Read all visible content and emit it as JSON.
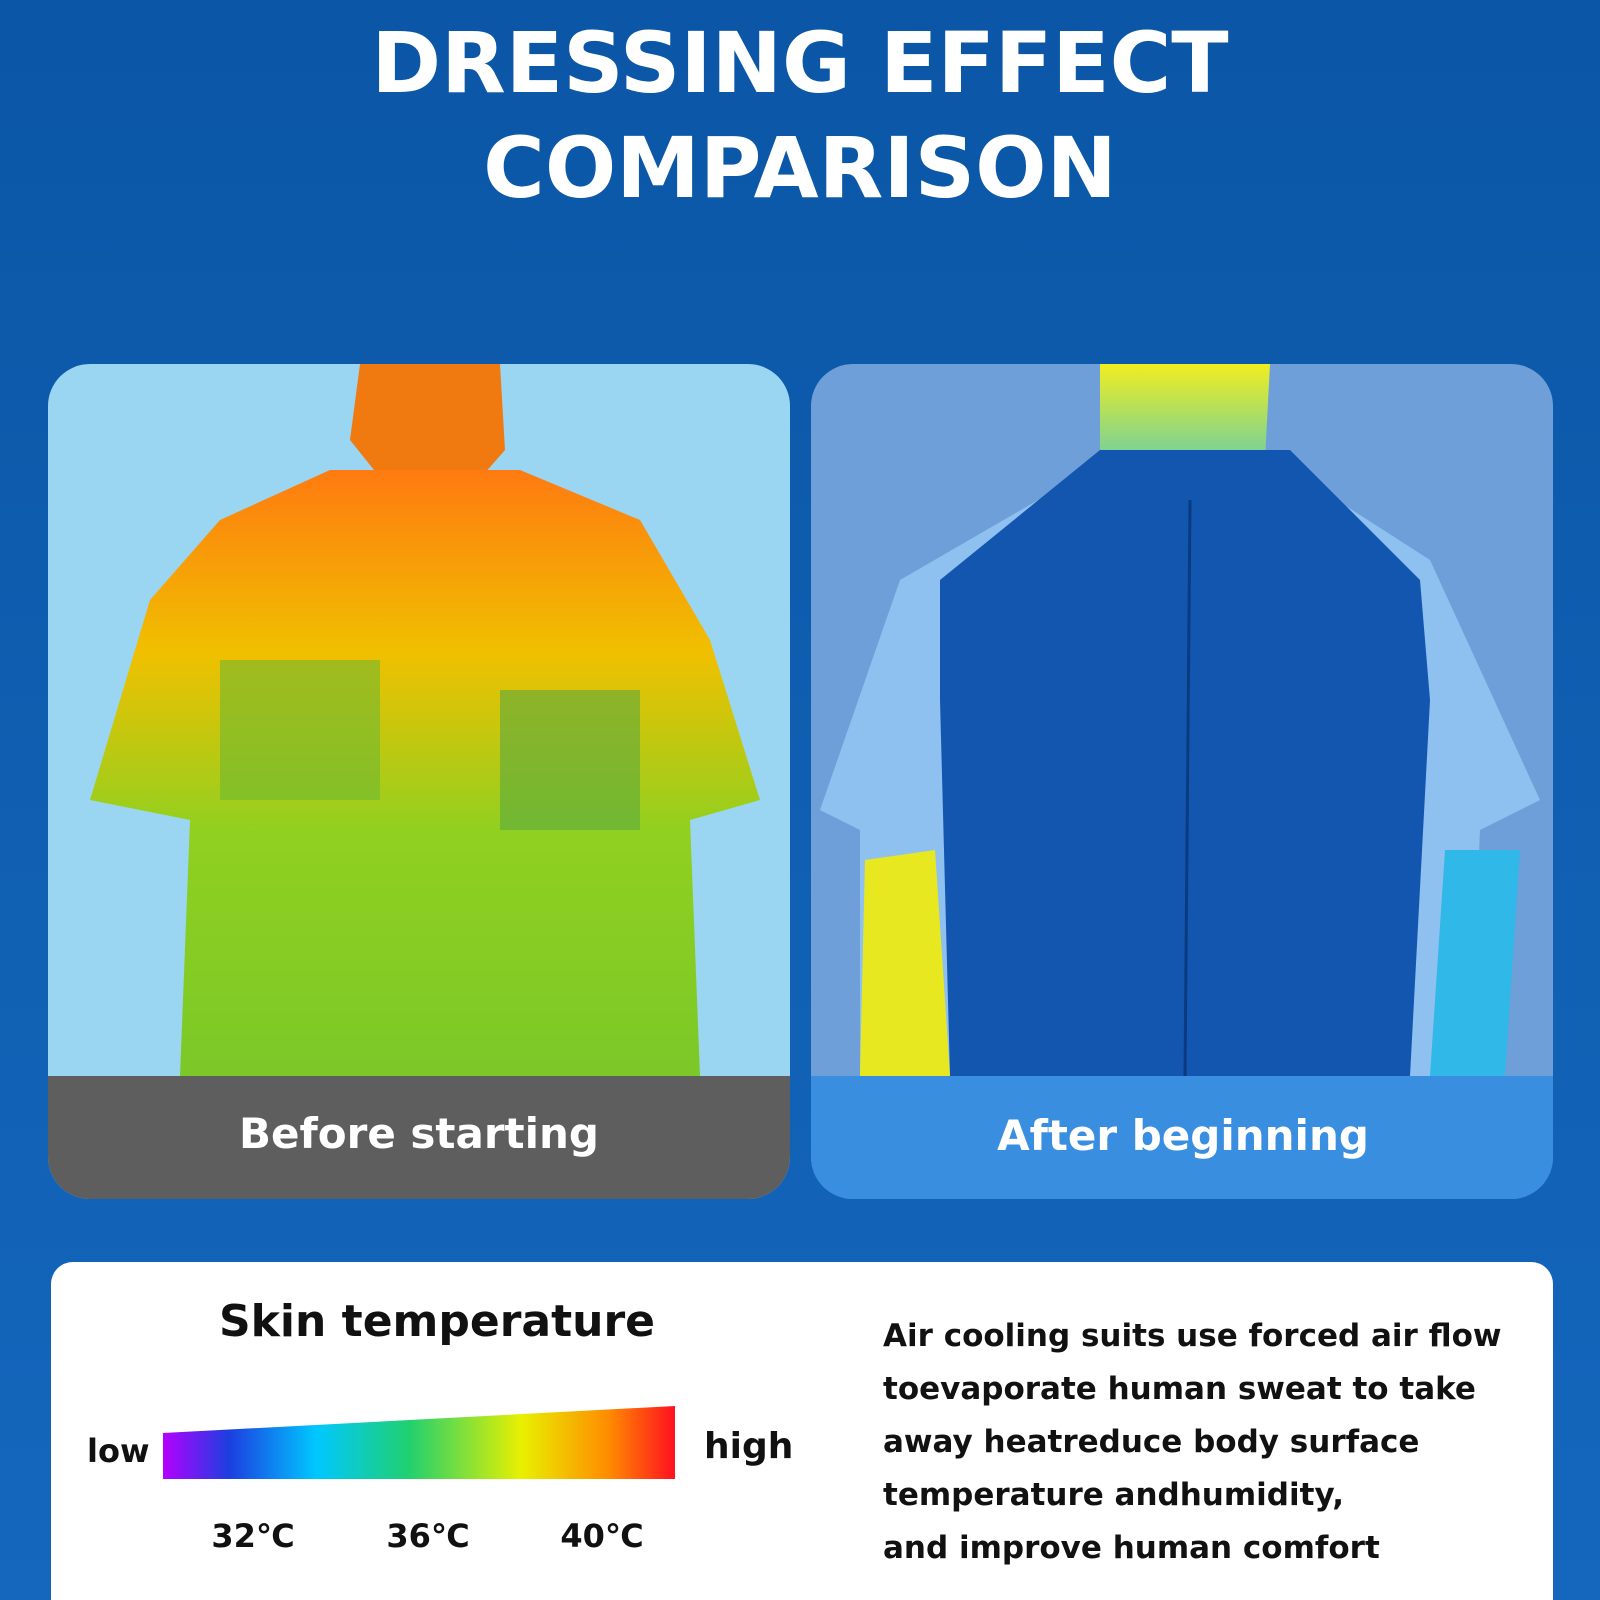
{
  "header": {
    "title_lines": [
      "DRESSING EFFECT",
      "COMPARISON"
    ]
  },
  "panels": [
    {
      "label": "Before starting"
    },
    {
      "label": "After beginning"
    }
  ],
  "legend": {
    "title": "Skin temperature",
    "low": "low",
    "high": "high",
    "ticks": [
      "32℃",
      "36℃",
      "40℃"
    ]
  },
  "description": {
    "lines": [
      "Air cooling suits use forced air flow",
      "toevaporate human sweat to take",
      "away heatreduce body surface",
      "temperature andhumidity,",
      "and improve human comfort"
    ]
  }
}
